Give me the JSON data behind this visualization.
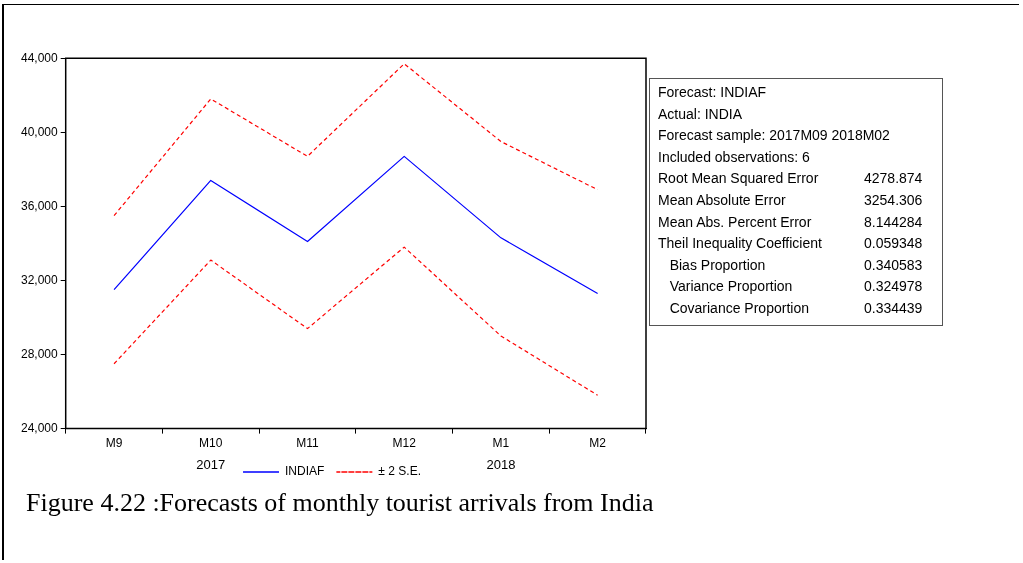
{
  "chart_data": [
    {
      "type": "line",
      "title": "Figure 4.22 :Forecasts of monthly tourist arrivals from India",
      "categories": [
        "M9",
        "M10",
        "M11",
        "M12",
        "M1",
        "M2"
      ],
      "series": [
        {
          "name": "INDIAF",
          "color": "#0000ff",
          "line_style": "solid",
          "values": [
            31500,
            37400,
            34100,
            38700,
            34300,
            31300
          ]
        },
        {
          "name": "± 2 S.E.",
          "color": "#ff0000",
          "line_style": "dashed",
          "values": [
            35500,
            41800,
            38700,
            43700,
            39500,
            36900
          ]
        },
        {
          "color": "#ff0000",
          "line_style": "dashed",
          "values": [
            27500,
            33100,
            29400,
            33800,
            29000,
            25800
          ]
        }
      ],
      "ylim": [
        24000,
        44000
      ],
      "yticks": [
        {
          "value": 24000,
          "label": "24,000"
        },
        {
          "value": 28000,
          "label": "28,000"
        },
        {
          "value": 32000,
          "label": "32,000"
        },
        {
          "value": 36000,
          "label": "36,000"
        },
        {
          "value": 40000,
          "label": "40,000"
        },
        {
          "value": 44000,
          "label": "44,000"
        }
      ],
      "grid": false,
      "legend": "bottom",
      "marker": "none",
      "annotations": [
        "2017",
        "2018"
      ]
    },
    {
      "type": "other",
      "annotations": [
        "Forecast: INDIAF",
        "Actual: INDIA",
        "Forecast sample: 2017M09 2018M02",
        "Included observations: 6",
        "Root Mean Squared Error\t4278.874",
        "Mean Absolute Error\t3254.306",
        "Mean Abs. Percent Error\t8.144284",
        "Theil Inequality Coefficient\t0.059348",
        "   Bias Proportion\t0.340583",
        "   Variance Proportion\t0.324978",
        "   Covariance Proportion\t0.334439"
      ]
    }
  ]
}
